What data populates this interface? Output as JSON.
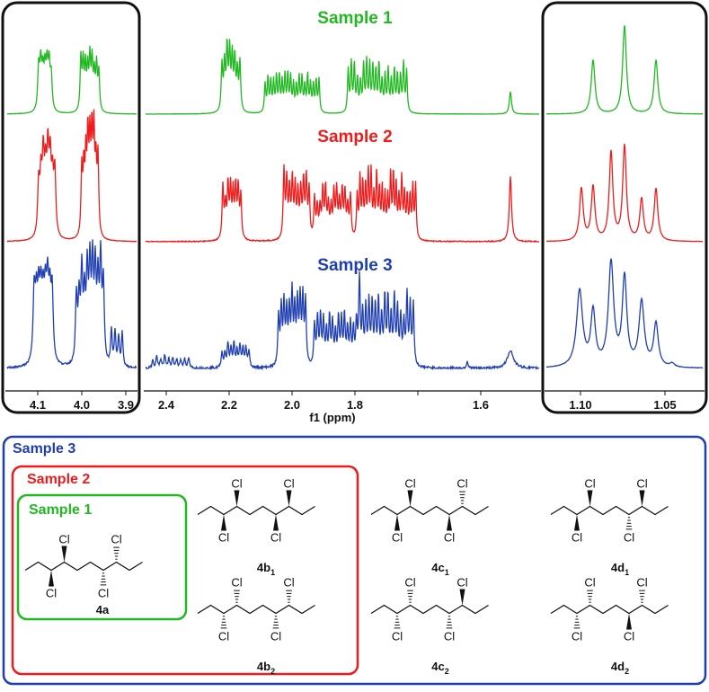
{
  "colors": {
    "sample1": "#22b822",
    "sample2": "#ee1c1c",
    "sample3": "#1f3fb0",
    "frame": "#111111"
  },
  "spectra": {
    "titles": [
      "Sample 1",
      "Sample 2",
      "Sample 3"
    ],
    "axis_label": "f1 (ppm)",
    "left_ticks": [
      "4.1",
      "4.0",
      "3.9"
    ],
    "middle_ticks": [
      "2.4",
      "2.2",
      "2.0",
      "1.8",
      "1.6"
    ],
    "right_ticks": [
      "1.10",
      "1.05"
    ]
  },
  "structures": {
    "box_labels": {
      "sample3": "Sample 3",
      "sample2": "Sample 2",
      "sample1": "Sample 1"
    },
    "atom_label": "Cl",
    "compounds": [
      {
        "name": "4a",
        "sub": ""
      },
      {
        "name": "4b",
        "sub": "1"
      },
      {
        "name": "4c",
        "sub": "1"
      },
      {
        "name": "4d",
        "sub": "1"
      },
      {
        "name": "4b",
        "sub": "2"
      },
      {
        "name": "4c",
        "sub": "2"
      },
      {
        "name": "4d",
        "sub": "2"
      }
    ]
  }
}
